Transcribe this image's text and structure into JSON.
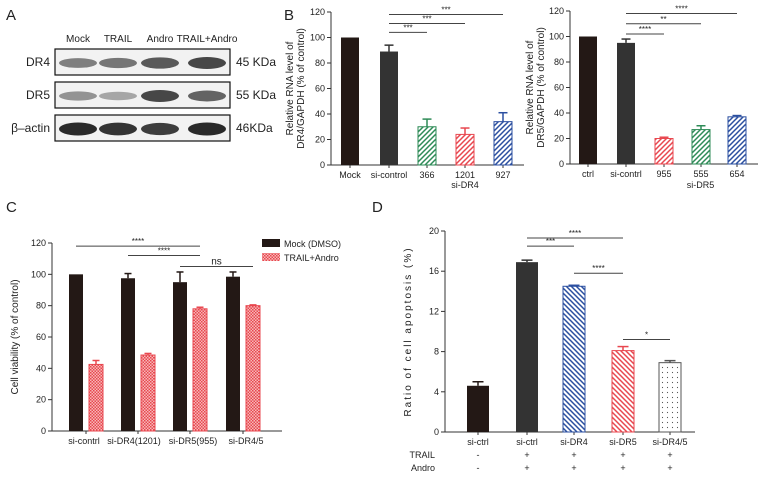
{
  "panel_labels": [
    "A",
    "B",
    "C",
    "D"
  ],
  "western_blot": {
    "lanes": [
      "Mock",
      "TRAIL",
      "Andro",
      "TRAIL+Andro"
    ],
    "rows": [
      {
        "protein": "DR4",
        "size": "45 KDa",
        "intensity": [
          0.55,
          0.6,
          0.75,
          0.85
        ]
      },
      {
        "protein": "DR5",
        "size": "55 KDa",
        "intensity": [
          0.45,
          0.35,
          0.85,
          0.7
        ]
      },
      {
        "protein": "β–actin",
        "size": "46KDa",
        "intensity": [
          1,
          0.95,
          0.9,
          1
        ]
      }
    ]
  },
  "chart_data": [
    {
      "id": "B1",
      "type": "bar",
      "ylabel": [
        "Relative RNA level of",
        "DR4/GAPDH (% of control)"
      ],
      "xgroup_label": "si-DR4",
      "ylim": [
        0,
        120
      ],
      "yticks": [
        0,
        20,
        40,
        60,
        80,
        100,
        120
      ],
      "categories": [
        "Mock",
        "si-control",
        "366",
        "1201",
        "927"
      ],
      "values": [
        100,
        89,
        30,
        24,
        34
      ],
      "errors": [
        0,
        5,
        6,
        5,
        7
      ],
      "colors": [
        "#231815",
        "#333333",
        "#2e8b57",
        "#e8474f",
        "#2b4fa0"
      ],
      "fills": [
        "solid",
        "solid",
        "hatch",
        "hatch",
        "hatch"
      ],
      "significance": [
        {
          "from": 1,
          "to": 2,
          "level": 104,
          "label": "***"
        },
        {
          "from": 1,
          "to": 3,
          "level": 111,
          "label": "***"
        },
        {
          "from": 1,
          "to": 4,
          "level": 118,
          "label": "***"
        }
      ]
    },
    {
      "id": "B2",
      "type": "bar",
      "ylabel": [
        "Relative RNA level of",
        "DR5/GAPDH (% of control)"
      ],
      "xgroup_label": "si-DR5",
      "ylim": [
        0,
        120
      ],
      "yticks": [
        0,
        20,
        40,
        60,
        80,
        100,
        120
      ],
      "categories": [
        "ctrl",
        "si-contrl",
        "955",
        "555",
        "654"
      ],
      "values": [
        100,
        95,
        20,
        27,
        37
      ],
      "errors": [
        0,
        3,
        1,
        3,
        1
      ],
      "colors": [
        "#231815",
        "#333333",
        "#e8474f",
        "#2e8b57",
        "#2b4fa0"
      ],
      "fills": [
        "solid",
        "solid",
        "hatch",
        "hatch",
        "hatch"
      ],
      "significance": [
        {
          "from": 1,
          "to": 2,
          "level": 102,
          "label": "****"
        },
        {
          "from": 1,
          "to": 3,
          "level": 110,
          "label": "**"
        },
        {
          "from": 1,
          "to": 4,
          "level": 118,
          "label": "****"
        }
      ]
    },
    {
      "id": "C",
      "type": "bar",
      "ylabel": [
        "Cell viability (% of control)"
      ],
      "ylim": [
        0,
        120
      ],
      "yticks": [
        0,
        20,
        40,
        60,
        80,
        100,
        120
      ],
      "categories": [
        "si-contrl",
        "si-DR4(1201)",
        "si-DR5(955)",
        "si-DR4/5"
      ],
      "series": [
        {
          "name": "Mock (DMSO)",
          "values": [
            100,
            97.5,
            95,
            98.5
          ],
          "errors": [
            0,
            3,
            6.5,
            3
          ],
          "color": "#231815",
          "fill": "solid"
        },
        {
          "name": "TRAIL+Andro",
          "values": [
            42.5,
            48.5,
            78,
            80
          ],
          "errors": [
            2.5,
            1,
            1,
            0.5
          ],
          "color": "#e8474f",
          "fill": "checker"
        }
      ],
      "legend": "top-right",
      "significance": [
        {
          "from": [
            0,
            0
          ],
          "to": [
            2,
            1
          ],
          "level": 118,
          "label": "****"
        },
        {
          "from": [
            1,
            0
          ],
          "to": [
            2,
            1
          ],
          "level": 112,
          "label": "****"
        },
        {
          "from": [
            2,
            0
          ],
          "to": [
            3,
            1
          ],
          "level": 105,
          "label": "ns"
        }
      ]
    },
    {
      "id": "D",
      "type": "bar",
      "ylabel": [
        "Ratio of cell apoptosis (%)"
      ],
      "ylim": [
        0,
        20
      ],
      "yticks": [
        0,
        4,
        8,
        12,
        16,
        20
      ],
      "categories": [
        "si-ctrl",
        "si-ctrl",
        "si-DR4",
        "si-DR5",
        "si-DR4/5"
      ],
      "values": [
        4.6,
        16.9,
        14.5,
        8.1,
        6.9
      ],
      "errors": [
        0.4,
        0.2,
        0.1,
        0.4,
        0.2
      ],
      "colors": [
        "#231815",
        "#333333",
        "#2b4fa0",
        "#e8474f",
        "#555555"
      ],
      "fills": [
        "solid",
        "solid",
        "hatchb",
        "hatchb",
        "dots"
      ],
      "treatments": [
        {
          "name": "TRAIL",
          "marks": [
            "-",
            "+",
            "+",
            "+",
            "+"
          ]
        },
        {
          "name": "Andro",
          "marks": [
            "-",
            "+",
            "+",
            "+",
            "+"
          ]
        }
      ],
      "significance": [
        {
          "from": 1,
          "to": 3,
          "level": 19.3,
          "label": "****"
        },
        {
          "from": 1,
          "to": 2,
          "level": 18.5,
          "label": "***"
        },
        {
          "from": 2,
          "to": 3,
          "level": 15.8,
          "label": "****"
        },
        {
          "from": 3,
          "to": 4,
          "level": 9.2,
          "label": "*"
        }
      ]
    }
  ]
}
